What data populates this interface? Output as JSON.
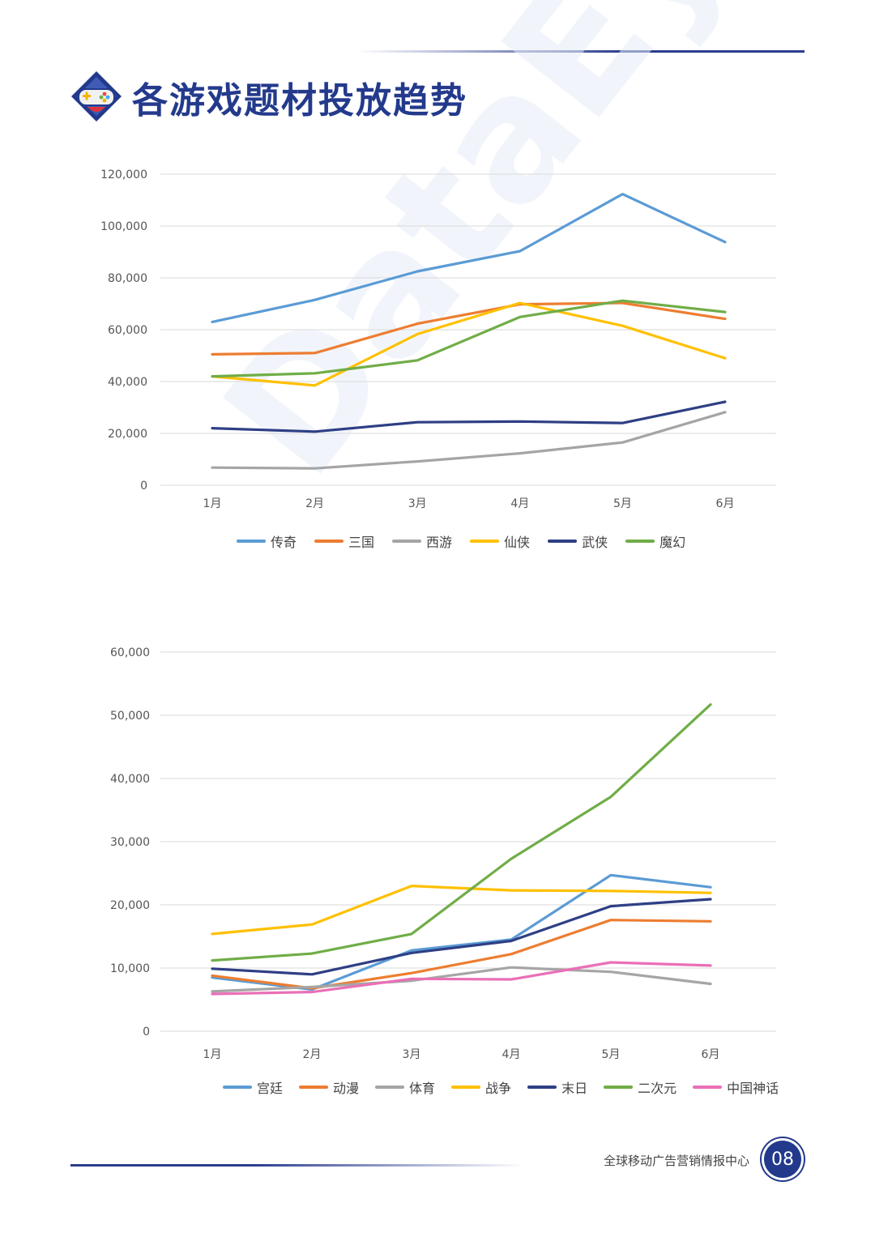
{
  "header": {
    "title": "各游戏题材投放趋势"
  },
  "watermark": {
    "text": "DataEye"
  },
  "footer": {
    "org_name": "全球移动广告营销情报中心",
    "page_number": "08"
  },
  "colors": {
    "brand": "#233a8c"
  },
  "chart_data": [
    {
      "type": "line",
      "categories": [
        "1月",
        "2月",
        "3月",
        "4月",
        "5月",
        "6月"
      ],
      "ylim": [
        0,
        120000
      ],
      "yticks": [
        0,
        20000,
        40000,
        60000,
        80000,
        100000,
        120000
      ],
      "ytick_labels": [
        "0",
        "20,000",
        "40,000",
        "60,000",
        "80,000",
        "100,000",
        "120,000"
      ],
      "legend_position": "bottom",
      "series": [
        {
          "name": "传奇",
          "color": "#5b9bd5",
          "values": [
            63000,
            71500,
            82500,
            90300,
            112300,
            93800
          ]
        },
        {
          "name": "三国",
          "color": "#ed7d31",
          "values": [
            50500,
            51000,
            62300,
            69800,
            70300,
            64200
          ]
        },
        {
          "name": "西游",
          "color": "#a5a5a5",
          "values": [
            6800,
            6500,
            9200,
            12300,
            16500,
            28200
          ]
        },
        {
          "name": "仙侠",
          "color": "#ffc000",
          "values": [
            42000,
            38500,
            58300,
            70300,
            61500,
            49000
          ]
        },
        {
          "name": "武侠",
          "color": "#2e3f85",
          "values": [
            22000,
            20700,
            24300,
            24600,
            24000,
            32200
          ]
        },
        {
          "name": "魔幻",
          "color": "#70ad47",
          "values": [
            42000,
            43200,
            48200,
            64900,
            71200,
            66800
          ]
        }
      ]
    },
    {
      "type": "line",
      "categories": [
        "1月",
        "2月",
        "3月",
        "4月",
        "5月",
        "6月"
      ],
      "ylim": [
        0,
        60000
      ],
      "yticks": [
        0,
        10000,
        20000,
        30000,
        40000,
        50000,
        60000
      ],
      "ytick_labels": [
        "0",
        "10,000",
        "20,000",
        "30,000",
        "40,000",
        "50,000",
        "60,000"
      ],
      "legend_position": "bottom",
      "series": [
        {
          "name": "宫廷",
          "color": "#5b9bd5",
          "values": [
            8500,
            6600,
            12800,
            14500,
            24700,
            22800
          ]
        },
        {
          "name": "动漫",
          "color": "#ed7d31",
          "values": [
            8800,
            6800,
            9200,
            12200,
            17600,
            17400
          ]
        },
        {
          "name": "体育",
          "color": "#a5a5a5",
          "values": [
            6300,
            7000,
            8000,
            10100,
            9400,
            7500
          ]
        },
        {
          "name": "战争",
          "color": "#ffc000",
          "values": [
            15400,
            16900,
            23000,
            22300,
            22200,
            21900
          ]
        },
        {
          "name": "末日",
          "color": "#2e3f85",
          "values": [
            9900,
            9000,
            12400,
            14300,
            19800,
            20900
          ]
        },
        {
          "name": "二次元",
          "color": "#70ad47",
          "values": [
            11200,
            12300,
            15400,
            27300,
            37100,
            51700
          ]
        },
        {
          "name": "中国神话",
          "color": "#ea6fb7",
          "values": [
            5900,
            6200,
            8300,
            8200,
            10900,
            10400
          ]
        }
      ]
    }
  ]
}
